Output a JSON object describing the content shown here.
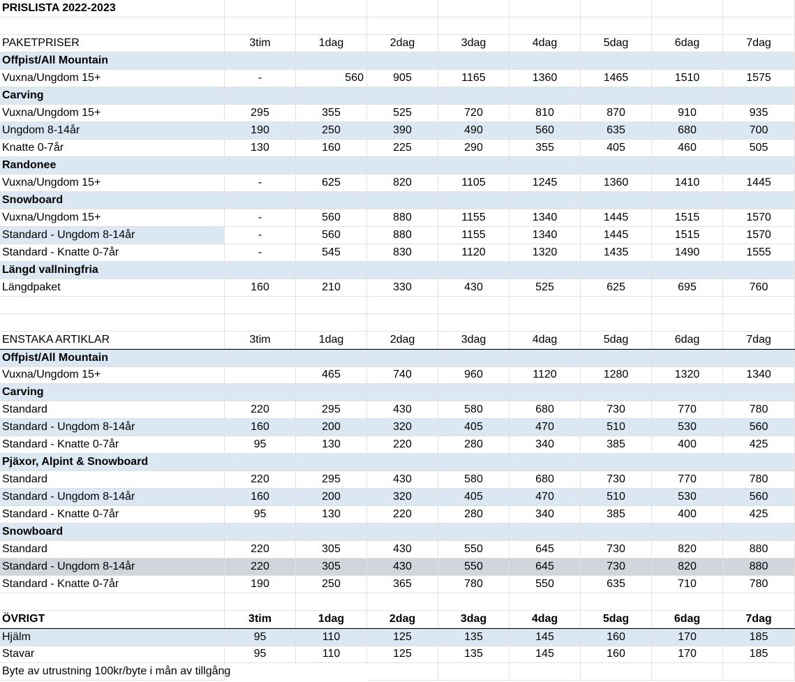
{
  "title": "PRISLISTA 2022-2023",
  "rows": [
    {
      "type": "title",
      "label": "PRISLISTA 2022-2023"
    },
    {
      "type": "empty"
    },
    {
      "type": "header",
      "label": "PAKETPRISER",
      "values": [
        "3tim",
        "1dag",
        "2dag",
        "3dag",
        "4dag",
        "5dag",
        "6dag",
        "7dag"
      ]
    },
    {
      "type": "category",
      "label": "Offpist/All Mountain",
      "shade": "blue"
    },
    {
      "type": "data",
      "label": "Vuxna/Ungdom 15+",
      "values": [
        "-",
        "560",
        "905",
        "1165",
        "1360",
        "1465",
        "1510",
        "1575"
      ],
      "right_align_col": 1
    },
    {
      "type": "category",
      "label": "Carving",
      "shade": "blue"
    },
    {
      "type": "data",
      "label": "Vuxna/Ungdom 15+",
      "values": [
        "295",
        "355",
        "525",
        "720",
        "810",
        "870",
        "910",
        "935"
      ]
    },
    {
      "type": "data",
      "label": "Ungdom 8-14år",
      "values": [
        "190",
        "250",
        "390",
        "490",
        "560",
        "635",
        "680",
        "700"
      ],
      "shade": "blue"
    },
    {
      "type": "data",
      "label": "Knatte 0-7år",
      "values": [
        "130",
        "160",
        "225",
        "290",
        "355",
        "405",
        "460",
        "505"
      ]
    },
    {
      "type": "category",
      "label": "Randonee",
      "shade": "blue"
    },
    {
      "type": "data",
      "label": "Vuxna/Ungdom 15+",
      "values": [
        "-",
        "625",
        "820",
        "1105",
        "1245",
        "1360",
        "1410",
        "1445"
      ]
    },
    {
      "type": "category",
      "label": "Snowboard",
      "shade": "blue"
    },
    {
      "type": "data",
      "label": "Vuxna/Ungdom 15+",
      "values": [
        "-",
        "560",
        "880",
        "1155",
        "1340",
        "1445",
        "1515",
        "1570"
      ]
    },
    {
      "type": "data",
      "label": "Standard - Ungdom 8-14år",
      "values": [
        "-",
        "560",
        "880",
        "1155",
        "1340",
        "1445",
        "1515",
        "1570"
      ],
      "shade": "blue-label"
    },
    {
      "type": "data",
      "label": "Standard - Knatte 0-7år",
      "values": [
        "-",
        "545",
        "830",
        "1120",
        "1320",
        "1435",
        "1490",
        "1555"
      ]
    },
    {
      "type": "category",
      "label": "Längd vallningfria",
      "shade": "blue"
    },
    {
      "type": "data",
      "label": "Längdpaket",
      "values": [
        "160",
        "210",
        "330",
        "430",
        "525",
        "625",
        "695",
        "760"
      ]
    },
    {
      "type": "empty"
    },
    {
      "type": "empty"
    },
    {
      "type": "header",
      "label": "ENSTAKA ARTIKLAR",
      "values": [
        "3tim",
        "1dag",
        "2dag",
        "3dag",
        "4dag",
        "5dag",
        "6dag",
        "7dag"
      ],
      "line_below": true
    },
    {
      "type": "category",
      "label": "Offpist/All Mountain",
      "shade": "blue"
    },
    {
      "type": "data",
      "label": "Vuxna/Ungdom 15+",
      "values": [
        "",
        "465",
        "740",
        "960",
        "1120",
        "1280",
        "1320",
        "1340"
      ]
    },
    {
      "type": "category",
      "label": "Carving",
      "shade": "blue"
    },
    {
      "type": "data",
      "label": "Standard",
      "values": [
        "220",
        "295",
        "430",
        "580",
        "680",
        "730",
        "770",
        "780"
      ]
    },
    {
      "type": "data",
      "label": "Standard - Ungdom 8-14år",
      "values": [
        "160",
        "200",
        "320",
        "405",
        "470",
        "510",
        "530",
        "560"
      ],
      "shade": "blue"
    },
    {
      "type": "data",
      "label": "Standard - Knatte 0-7år",
      "values": [
        "95",
        "130",
        "220",
        "280",
        "340",
        "385",
        "400",
        "425"
      ]
    },
    {
      "type": "category",
      "label": "Pjäxor, Alpint & Snowboard",
      "shade": "blue"
    },
    {
      "type": "data",
      "label": "Standard",
      "values": [
        "220",
        "295",
        "430",
        "580",
        "680",
        "730",
        "770",
        "780"
      ]
    },
    {
      "type": "data",
      "label": "Standard - Ungdom 8-14år",
      "values": [
        "160",
        "200",
        "320",
        "405",
        "470",
        "510",
        "530",
        "560"
      ],
      "shade": "blue"
    },
    {
      "type": "data",
      "label": "Standard - Knatte 0-7år",
      "values": [
        "95",
        "130",
        "220",
        "280",
        "340",
        "385",
        "400",
        "425"
      ]
    },
    {
      "type": "category",
      "label": "Snowboard",
      "shade": "blue"
    },
    {
      "type": "data",
      "label": "Standard",
      "values": [
        "220",
        "305",
        "430",
        "550",
        "645",
        "730",
        "820",
        "880"
      ]
    },
    {
      "type": "data",
      "label": "Standard - Ungdom 8-14år",
      "values": [
        "220",
        "305",
        "430",
        "550",
        "645",
        "730",
        "820",
        "880"
      ],
      "shade": "gray"
    },
    {
      "type": "data",
      "label": "Standard - Knatte 0-7år",
      "values": [
        "190",
        "250",
        "365",
        "780",
        "550",
        "635",
        "710",
        "780"
      ]
    },
    {
      "type": "empty"
    },
    {
      "type": "header",
      "label": "ÖVRIGT",
      "values": [
        "3tim",
        "1dag",
        "2dag",
        "3dag",
        "4dag",
        "5dag",
        "6dag",
        "7dag"
      ],
      "bold": true,
      "line_below": true
    },
    {
      "type": "data",
      "label": "Hjälm",
      "values": [
        "95",
        "110",
        "125",
        "135",
        "145",
        "160",
        "170",
        "185"
      ],
      "shade": "blue"
    },
    {
      "type": "data",
      "label": "Stavar",
      "values": [
        "95",
        "110",
        "125",
        "135",
        "145",
        "160",
        "170",
        "185"
      ]
    },
    {
      "type": "note",
      "label": "Byte av utrustning 100kr/byte i mån av tillgång"
    }
  ]
}
